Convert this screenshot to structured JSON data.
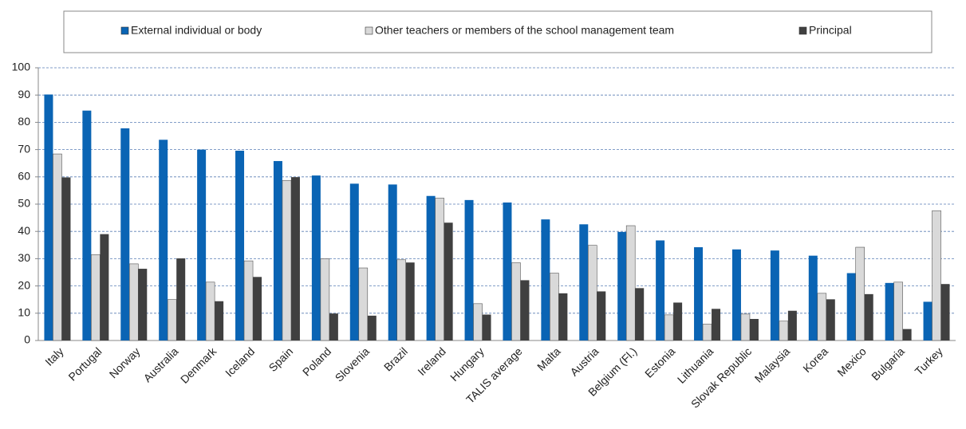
{
  "chart_data": {
    "type": "bar",
    "categories": [
      "Italy",
      "Portugal",
      "Norway",
      "Australia",
      "Denmark",
      "Iceland",
      "Spain",
      "Poland",
      "Slovenia",
      "Brazil",
      "Ireland",
      "Hungary",
      "TALIS average",
      "Malta",
      "Austria",
      "Belgium (Fl.)",
      "Estonia",
      "Lithuania",
      "Slovak Republic",
      "Malaysia",
      "Korea",
      "Mexico",
      "Bulgaria",
      "Turkey"
    ],
    "series": [
      {
        "name": "External individual or body",
        "color": "#0a64b4",
        "values": [
          90.2,
          84.3,
          77.8,
          73.6,
          70.0,
          69.6,
          65.8,
          60.5,
          57.5,
          57.2,
          53.0,
          51.5,
          50.6,
          44.4,
          42.6,
          39.8,
          36.7,
          34.2,
          33.4,
          33.0,
          31.1,
          24.7,
          21.1,
          14.2
        ]
      },
      {
        "name": "Other teachers or members of the school management team",
        "color": "#d9d9d9",
        "values": [
          68.4,
          31.5,
          28.1,
          15.0,
          21.4,
          29.2,
          58.7,
          30.0,
          26.6,
          29.6,
          52.2,
          13.5,
          28.5,
          24.7,
          34.9,
          42.1,
          9.4,
          6.0,
          9.7,
          7.1,
          17.3,
          34.2,
          21.4,
          47.6
        ]
      },
      {
        "name": "Principal",
        "color": "#404040",
        "values": [
          59.8,
          39.0,
          26.3,
          30.1,
          14.4,
          23.3,
          59.9,
          9.9,
          9.1,
          28.6,
          43.2,
          9.5,
          22.1,
          17.3,
          18.0,
          19.2,
          13.9,
          11.6,
          7.9,
          10.9,
          15.1,
          17.0,
          4.2,
          20.7
        ]
      }
    ],
    "ylim": [
      0,
      100
    ],
    "yticks": [
      0,
      10,
      20,
      30,
      40,
      50,
      60,
      70,
      80,
      90,
      100
    ],
    "grid": true,
    "legend": "top"
  }
}
